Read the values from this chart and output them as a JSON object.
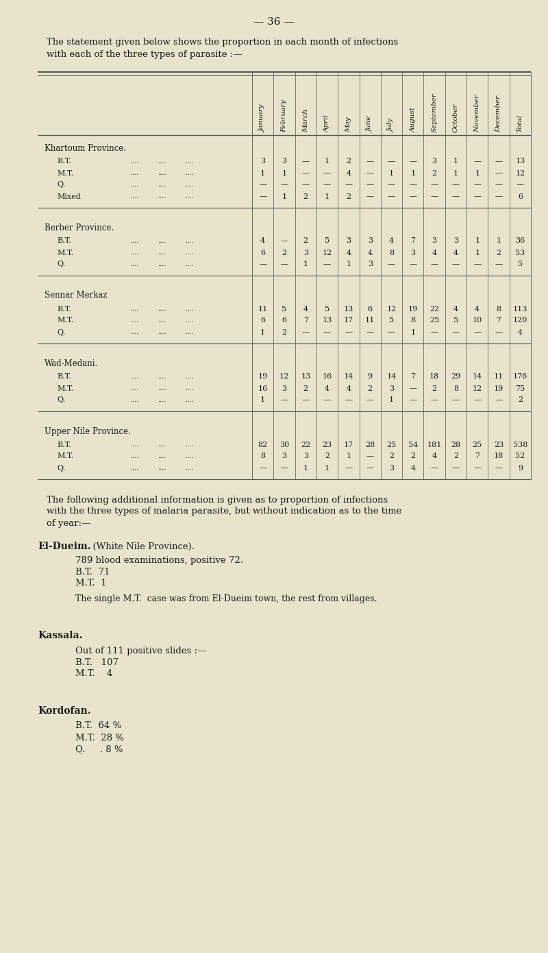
{
  "bg_color": "#e8e3cc",
  "page_number": "— 36 —",
  "intro_line1": "The statement given below shows the proportion in each month of infections",
  "intro_line2": "with each of the three types of parasite :—",
  "col_headers": [
    "January",
    "February",
    "March",
    "April",
    "May",
    "June",
    "July",
    "August",
    "September",
    "October",
    "November",
    "December",
    "Total"
  ],
  "sections": [
    {
      "title": "Khartoum Province.",
      "title_style": "smallcaps",
      "rows": [
        {
          "label": "B.T.",
          "values": [
            "3",
            "3",
            "—",
            "1",
            "2",
            "—",
            "—",
            "—",
            "3",
            "1",
            "—",
            "—",
            "13"
          ]
        },
        {
          "label": "M.T.",
          "values": [
            "1",
            "1",
            "—",
            "—",
            "4",
            "—",
            "1",
            "1",
            "2",
            "1",
            "1",
            "—",
            "12"
          ]
        },
        {
          "label": "Q.",
          "values": [
            "—",
            "—",
            "—",
            "—",
            "—",
            "—",
            "—",
            "—",
            "—",
            "—",
            "—",
            "—",
            "—"
          ]
        },
        {
          "label": "Mixed",
          "values": [
            "—",
            "1",
            "2",
            "1",
            "2",
            "—",
            "—",
            "—",
            "—",
            "—",
            "—",
            "—",
            "6"
          ]
        }
      ]
    },
    {
      "title": "Berber Province.",
      "title_style": "smallcaps",
      "rows": [
        {
          "label": "B.T.",
          "values": [
            "4",
            "—",
            "2",
            "5",
            "3",
            "3",
            "4",
            "7",
            "3",
            "3",
            "1",
            "1",
            "36"
          ]
        },
        {
          "label": "M.T.",
          "values": [
            "6",
            "2",
            "3",
            "12",
            "4",
            "4",
            "8",
            "3",
            "4",
            "4",
            "1",
            "2",
            "53"
          ]
        },
        {
          "label": "Q.",
          "values": [
            "—",
            "—",
            "1",
            "—",
            "1",
            "3",
            "—",
            "—",
            "—",
            "—",
            "—",
            "—",
            "5"
          ]
        }
      ]
    },
    {
      "title": "Sennar Merkaz",
      "title_style": "smallcaps",
      "rows": [
        {
          "label": "B.T.",
          "values": [
            "11",
            "5",
            "4",
            "5",
            "13",
            "6",
            "12",
            "19",
            "22",
            "4",
            "4",
            "8",
            "113"
          ]
        },
        {
          "label": "M.T.",
          "values": [
            "6",
            "6",
            "7",
            "13",
            "17",
            "11",
            "5",
            "8",
            "25",
            "5",
            "10",
            "7",
            "120"
          ]
        },
        {
          "label": "Q.",
          "values": [
            "1",
            "2",
            "—",
            "—",
            "—",
            "—",
            "—",
            "1",
            "—",
            "—",
            "—",
            "—",
            "4"
          ]
        }
      ]
    },
    {
      "title": "Wad-Medani.",
      "title_style": "smallcaps",
      "rows": [
        {
          "label": "B.T.",
          "values": [
            "19",
            "12",
            "13",
            "16",
            "14",
            "9",
            "14",
            "7",
            "18",
            "29",
            "14",
            "11",
            "176"
          ]
        },
        {
          "label": "M.T.",
          "values": [
            "16",
            "3",
            "2",
            "4",
            "4",
            "2",
            "3",
            "—",
            "2",
            "8",
            "12",
            "19",
            "75"
          ]
        },
        {
          "label": "Q.",
          "values": [
            "1",
            "—",
            "—",
            "—",
            "—",
            "—",
            "1",
            "—",
            "—",
            "—",
            "—",
            "—",
            "2"
          ]
        }
      ]
    },
    {
      "title": "Upper Nile Province.",
      "title_style": "smallcaps",
      "rows": [
        {
          "label": "B.T.",
          "values": [
            "82",
            "30",
            "22",
            "23",
            "17",
            "28",
            "25",
            "54",
            "181",
            "28",
            "25",
            "23",
            "538"
          ]
        },
        {
          "label": "M.T.",
          "values": [
            "8",
            "3",
            "3",
            "2",
            "1",
            "—",
            "2",
            "2",
            "4",
            "2",
            "7",
            "18",
            "52"
          ]
        },
        {
          "label": "Q.",
          "values": [
            "—",
            "—",
            "1",
            "1",
            "—",
            "—",
            "3",
            "4",
            "—",
            "—",
            "—",
            "—",
            "9"
          ]
        }
      ]
    }
  ],
  "additional_line1": "The following additional information is given as to proportion of infections",
  "additional_line2": "with the three types of malaria parasite, but without indication as to the time",
  "additional_line3": "of year:—",
  "el_dueim_bold": "El-Dueim.",
  "el_dueim_normal": "  (White Nile Province).",
  "el_dueim_indent_lines": [
    "789 blood examinations, positive 72.",
    "B.T.  71",
    "M.T.  1"
  ],
  "el_dueim_note": "The single M.T.  case was from El-Dueim town, the rest from villages.",
  "kassala_bold": "Kassala.",
  "kassala_indent_lines": [
    "Out of 111 positive slides :—",
    "B.T.   107",
    "M.T.    4"
  ],
  "kordofan_bold": "Kordofan.",
  "kordofan_indent_lines": [
    "B.T.  64 %",
    "M.T.  28 %",
    "Q.     . 8 %"
  ],
  "text_color": "#1c1c1c",
  "line_color": "#555555"
}
